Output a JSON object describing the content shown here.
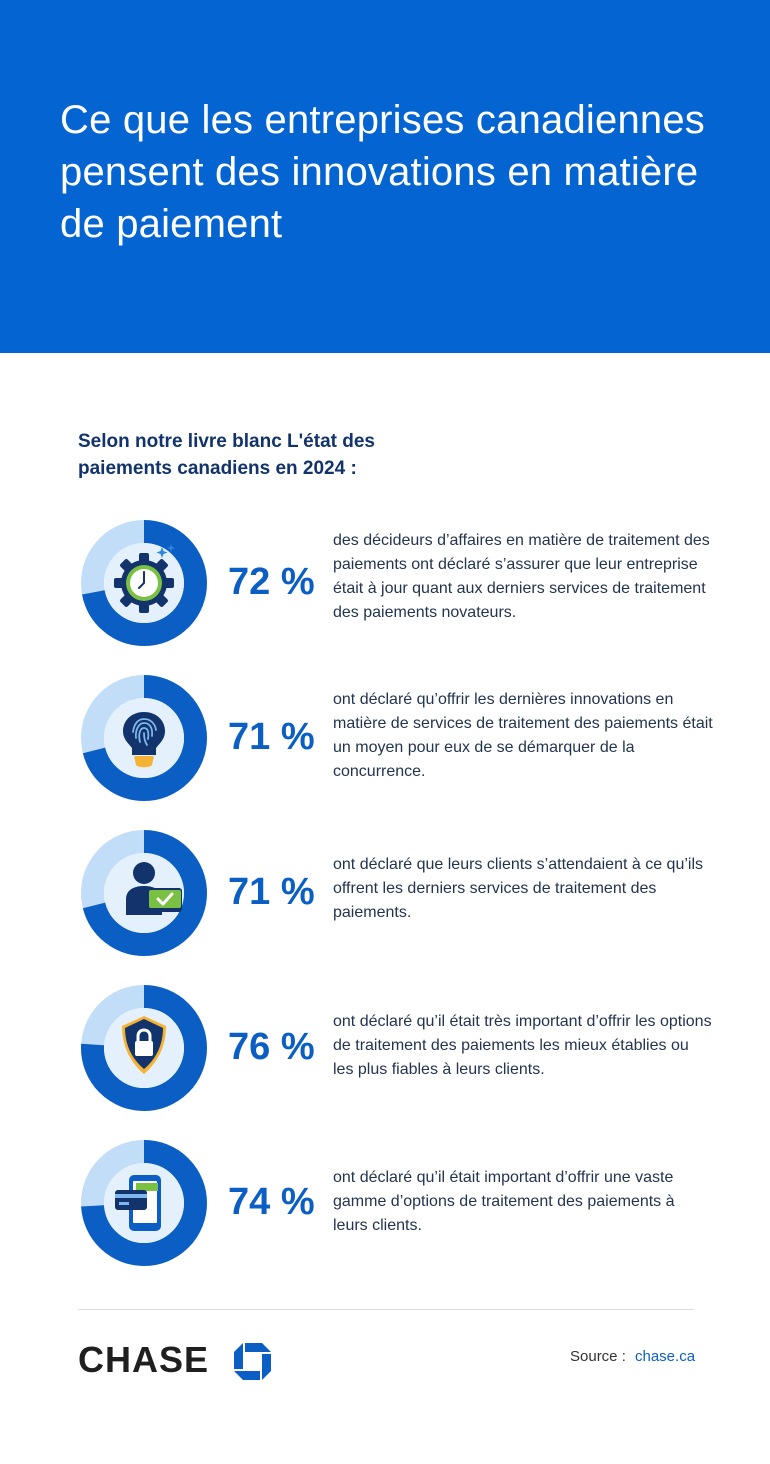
{
  "header": {
    "title": "Ce que les entreprises canadiennes pensent des innovations en matière de paiement"
  },
  "intro": "Selon notre livre blanc L'état des paiements canadiens en 2024 :",
  "chart_data": {
    "type": "donut",
    "items": [
      {
        "value": 72,
        "label": "72 %",
        "icon": "clock-gear-icon",
        "text": "des décideurs d’affaires en matière de traitement des paiements ont déclaré s’assurer que leur entreprise était à jour quant aux derniers services de traitement des paiements novateurs."
      },
      {
        "value": 71,
        "label": "71 %",
        "icon": "lightbulb-fingerprint-icon",
        "text": "ont déclaré qu’offrir les dernières innovations en matière de services de traitement des paiements était un moyen pour eux de se démarquer de la concurrence."
      },
      {
        "value": 71,
        "label": "71 %",
        "icon": "person-checkmark-icon",
        "text": "ont déclaré que leurs clients s’attendaient à ce qu’ils offrent les derniers services de traitement des paiements."
      },
      {
        "value": 76,
        "label": "76 %",
        "icon": "shield-lock-icon",
        "text": "ont déclaré qu’il était très important d’offrir les options de traitement des paiements les mieux établies ou les plus fiables à leurs clients."
      },
      {
        "value": 74,
        "label": "74 %",
        "icon": "phone-card-icon",
        "text": "ont déclaré qu’il était important d’offrir une vaste gamme d’options de traitement des paiements à leurs clients."
      }
    ]
  },
  "colors": {
    "brand_blue": "#0464d2",
    "ring_dark": "#0b5fc4",
    "ring_light": "#c2ddf7",
    "inner_fill": "#e4f1fc",
    "navy": "#12336b",
    "green": "#7ac143",
    "gold": "#f5b335"
  },
  "footer": {
    "brand": "CHASE",
    "source_label": "Source :",
    "source_link": "chase.ca"
  }
}
